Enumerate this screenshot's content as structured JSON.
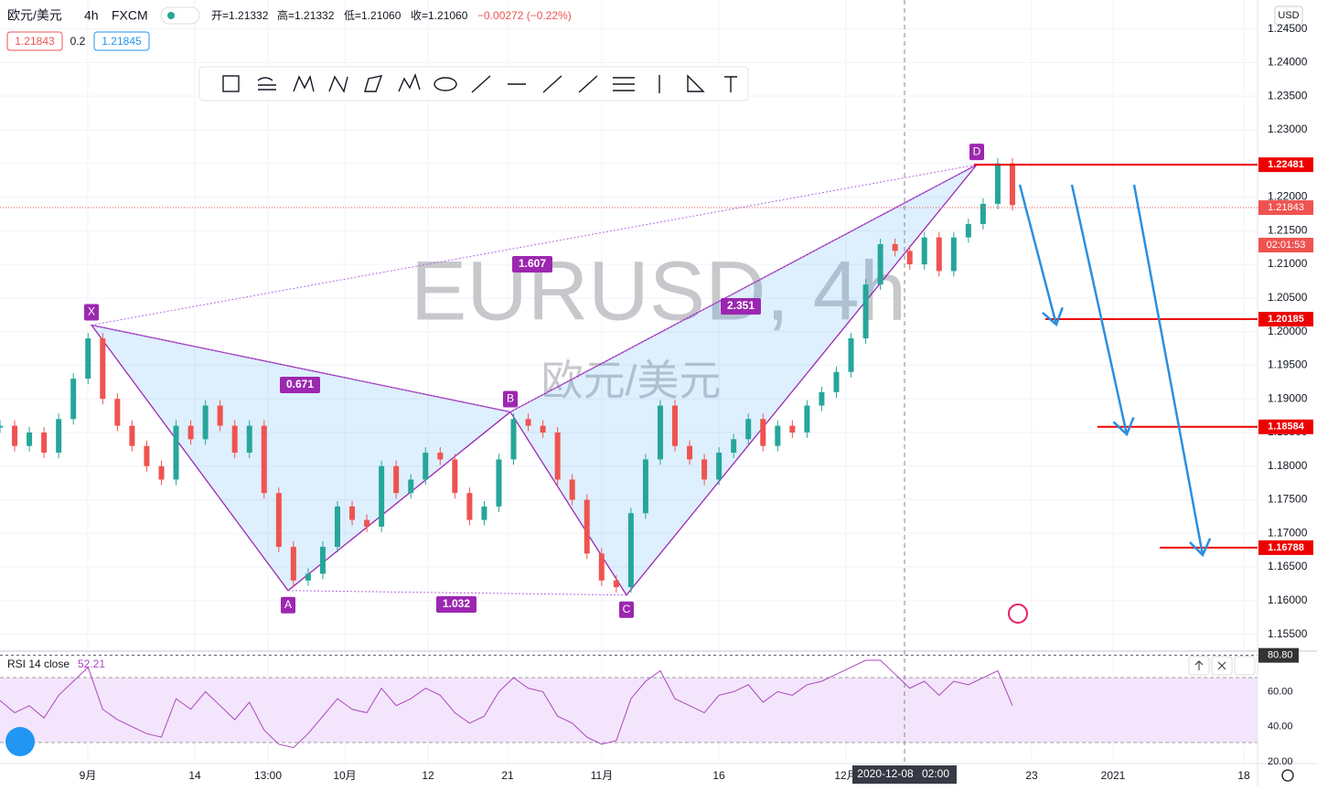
{
  "header": {
    "symbol": "欧元/美元",
    "interval": "4h",
    "broker": "FXCM",
    "open": "开=1.21332",
    "high": "高=1.21332",
    "low": "低=1.21060",
    "close": "收=1.21060",
    "change": "−0.00272 (−0.22%)",
    "bid": "1.21843",
    "spread": "0.2",
    "ask": "1.21845"
  },
  "watermark": {
    "title": "EURUSD, 4h",
    "subtitle": "欧元/美元"
  },
  "currency": "USD",
  "price_axis": {
    "ylim": [
      1.1525,
      1.2493
    ],
    "yticks": [
      {
        "value": 1.245,
        "label": "1.24500"
      },
      {
        "value": 1.24,
        "label": "1.24000"
      },
      {
        "value": 1.235,
        "label": "1.23500"
      },
      {
        "value": 1.23,
        "label": "1.23000"
      },
      {
        "value": 1.225,
        "label": "1.22500"
      },
      {
        "value": 1.22,
        "label": "1.22000"
      },
      {
        "value": 1.215,
        "label": "1.21500"
      },
      {
        "value": 1.21,
        "label": "1.21000"
      },
      {
        "value": 1.205,
        "label": "1.20500"
      },
      {
        "value": 1.2,
        "label": "1.20000"
      },
      {
        "value": 1.195,
        "label": "1.19500"
      },
      {
        "value": 1.19,
        "label": "1.19000"
      },
      {
        "value": 1.185,
        "label": "1.18500"
      },
      {
        "value": 1.18,
        "label": "1.18000"
      },
      {
        "value": 1.175,
        "label": "1.17500"
      },
      {
        "value": 1.17,
        "label": "1.17000"
      },
      {
        "value": 1.165,
        "label": "1.16500"
      },
      {
        "value": 1.16,
        "label": "1.16000"
      },
      {
        "value": 1.155,
        "label": "1.15500"
      }
    ]
  },
  "price": {
    "closes": [
      1.186,
      1.183,
      1.185,
      1.182,
      1.187,
      1.193,
      1.199,
      1.19,
      1.186,
      1.183,
      1.18,
      1.178,
      1.186,
      1.184,
      1.189,
      1.186,
      1.182,
      1.186,
      1.176,
      1.168,
      1.163,
      1.164,
      1.168,
      1.174,
      1.172,
      1.171,
      1.18,
      1.176,
      1.178,
      1.182,
      1.181,
      1.176,
      1.172,
      1.174,
      1.181,
      1.187,
      1.186,
      1.185,
      1.178,
      1.175,
      1.167,
      1.163,
      1.162,
      1.173,
      1.181,
      1.189,
      1.183,
      1.181,
      1.178,
      1.182,
      1.184,
      1.187,
      1.183,
      1.186,
      1.185,
      1.189,
      1.191,
      1.194,
      1.199,
      1.207,
      1.213,
      1.212,
      1.21,
      1.214,
      1.209,
      1.214,
      1.216,
      1.219,
      1.225,
      1.2188
    ],
    "last": 1.21843,
    "countdown": "02:01:53"
  },
  "pattern": {
    "points": [
      {
        "label": "X",
        "price": 1.20097
      },
      {
        "label": "A",
        "price": 1.1615
      },
      {
        "label": "B",
        "price": 1.18806
      },
      {
        "label": "C",
        "price": 1.16083
      },
      {
        "label": "D",
        "price": 1.22481
      }
    ],
    "ratios": [
      "0.671",
      "1.607",
      "2.351",
      "1.032"
    ]
  },
  "levels": [
    1.22481,
    1.20185,
    1.18584,
    1.16788
  ],
  "x_axis": {
    "labels": [
      "9月",
      "14",
      "13:00",
      "10月",
      "12",
      "21",
      "11月",
      "16",
      "12月",
      "23",
      "2021",
      "18"
    ],
    "crosshair": "2020-12-08",
    "crosshair_time": "02:00"
  },
  "rsi": {
    "label": "RSI 14 close",
    "current": "52.21",
    "ylim": [
      18.9,
      82.2
    ],
    "yticks": [
      {
        "value": 80.8,
        "label": "80.80"
      },
      {
        "value": 60,
        "label": "60.00"
      },
      {
        "value": 40,
        "label": "40.00"
      },
      {
        "value": 20,
        "label": "20.00"
      }
    ],
    "values": [
      55,
      48,
      52,
      45,
      58,
      66,
      74,
      50,
      44,
      40,
      36,
      34,
      56,
      50,
      60,
      52,
      44,
      54,
      38,
      30,
      28,
      36,
      46,
      56,
      50,
      48,
      62,
      52,
      56,
      62,
      58,
      48,
      42,
      46,
      60,
      68,
      62,
      60,
      46,
      42,
      34,
      30,
      32,
      56,
      66,
      72,
      56,
      52,
      48,
      58,
      60,
      64,
      54,
      60,
      58,
      64,
      66,
      70,
      74,
      78,
      78,
      70,
      62,
      66,
      58,
      66,
      64,
      68,
      72,
      52
    ]
  }
}
